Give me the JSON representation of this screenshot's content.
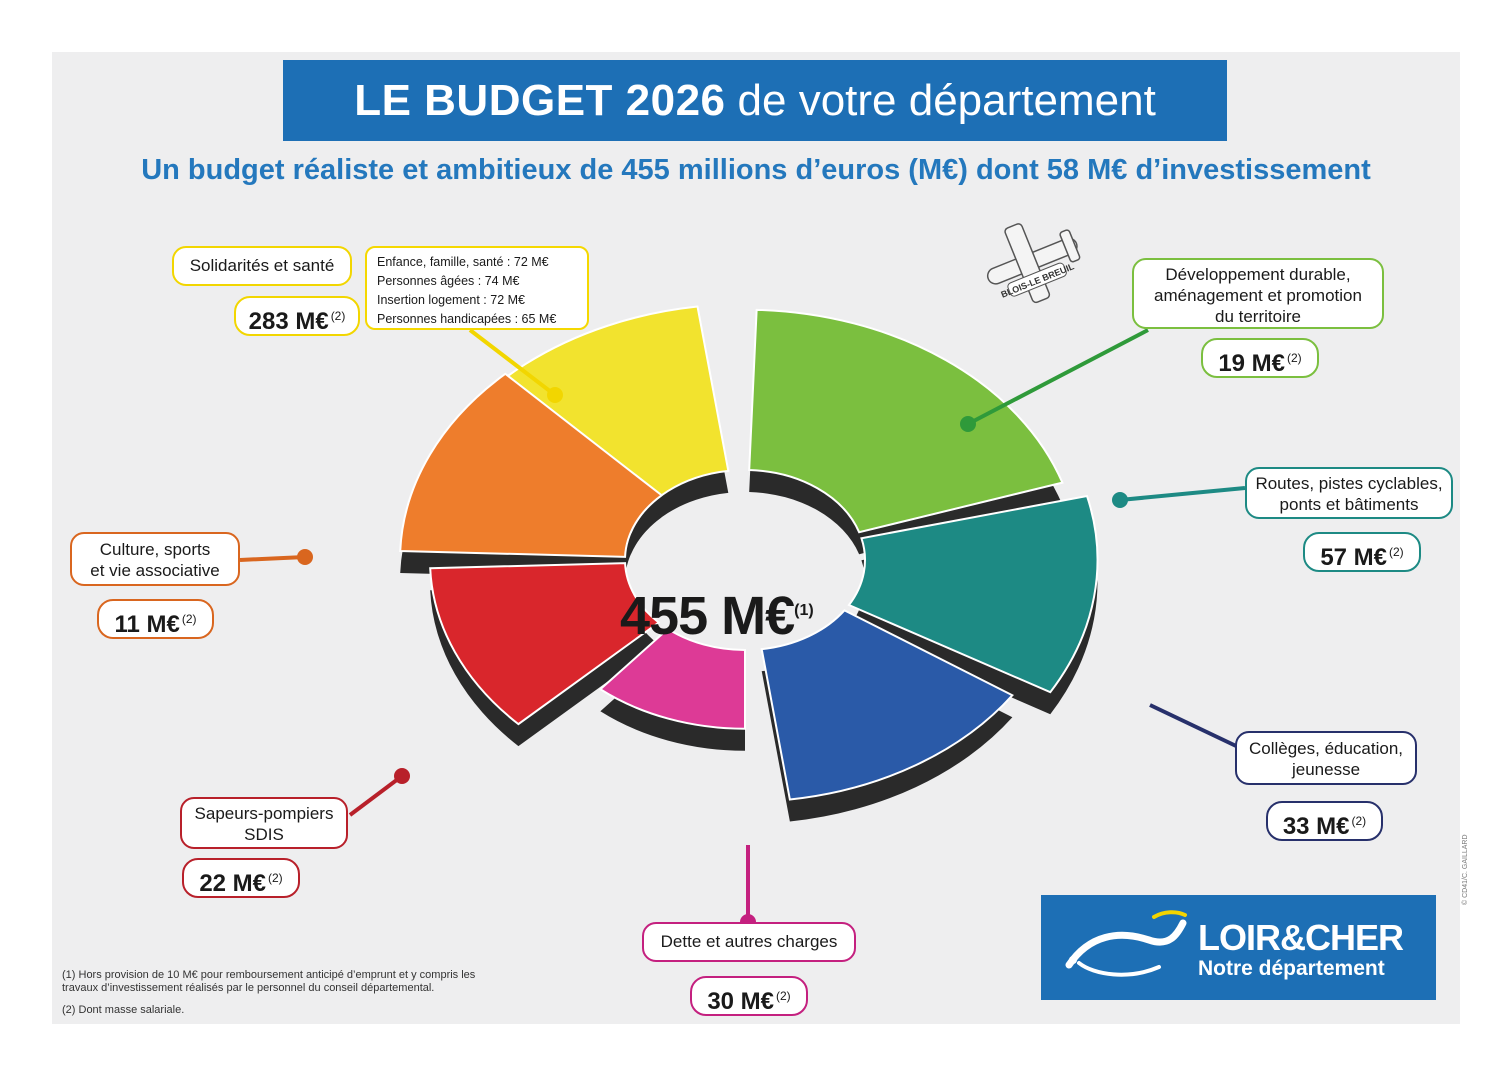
{
  "title": {
    "bold": "LE BUDGET 2026",
    "rest": "de votre département"
  },
  "subtitle": "Un budget réaliste et ambitieux de 455 millions d’euros (M€) dont 58 M€ d’investissement",
  "chart_data": {
    "type": "pie",
    "total_label": "455 M€",
    "total_note": "(1)",
    "unit": "M€",
    "series": [
      {
        "name": "Solidarités et santé",
        "value": 283,
        "display": "283 M€",
        "note": "(2)",
        "color": "#f2e32e"
      },
      {
        "name": "Développement durable, aménagement et promotion du territoire",
        "value": 19,
        "display": "19 M€",
        "note": "(2)",
        "color": "#7bbf3f"
      },
      {
        "name": "Routes, pistes cyclables, ponts et bâtiments",
        "value": 57,
        "display": "57 M€",
        "note": "(2)",
        "color": "#1d8a84"
      },
      {
        "name": "Collèges, éducation, jeunesse",
        "value": 33,
        "display": "33 M€",
        "note": "(2)",
        "color": "#2a5aa8"
      },
      {
        "name": "Dette et autres charges",
        "value": 30,
        "display": "30 M€",
        "note": "(2)",
        "color": "#dd3a96"
      },
      {
        "name": "Sapeurs-pompiers SDIS",
        "value": 22,
        "display": "22 M€",
        "note": "(2)",
        "color": "#d9262c"
      },
      {
        "name": "Culture, sports et vie associative",
        "value": 11,
        "display": "11 M€",
        "note": "(2)",
        "color": "#ee7d2c"
      }
    ],
    "detail_breakdown": [
      "Enfance, famille, santé : 72 M€",
      "Personnes âgées : 74 M€",
      "Insertion logement : 72 M€",
      "Personnes handicapées : 65 M€"
    ]
  },
  "labels": {
    "solidarites": "Solidarités et santé",
    "developpement": [
      "Développement durable,",
      "aménagement et promotion",
      "du territoire"
    ],
    "routes": [
      "Routes, pistes cyclables,",
      "ponts et bâtiments"
    ],
    "colleges": [
      "Collèges, éducation,",
      "jeunesse"
    ],
    "dette": "Dette et autres charges",
    "pompiers": [
      "Sapeurs-pompiers",
      "SDIS"
    ],
    "culture": [
      "Culture, sports",
      "et vie associative"
    ]
  },
  "values": {
    "solidarites": "283 M€",
    "developpement": "19 M€",
    "routes": "57 M€",
    "colleges": "33 M€",
    "dette": "30 M€",
    "pompiers": "22 M€",
    "culture": "11 M€",
    "note": "(2)"
  },
  "plane_banner": "BLOIS-LE BREUIL",
  "footnotes": [
    "(1) Hors provision de 10 M€ pour remboursement anticipé d’emprunt et y compris les",
    "travaux d’investissement réalisés par le personnel du conseil départemental.",
    "(2) Dont masse salariale."
  ],
  "logo": {
    "name": "LOIR&CHER",
    "tagline": "Notre département"
  },
  "credit": "© CD41/C. GAILLARD"
}
